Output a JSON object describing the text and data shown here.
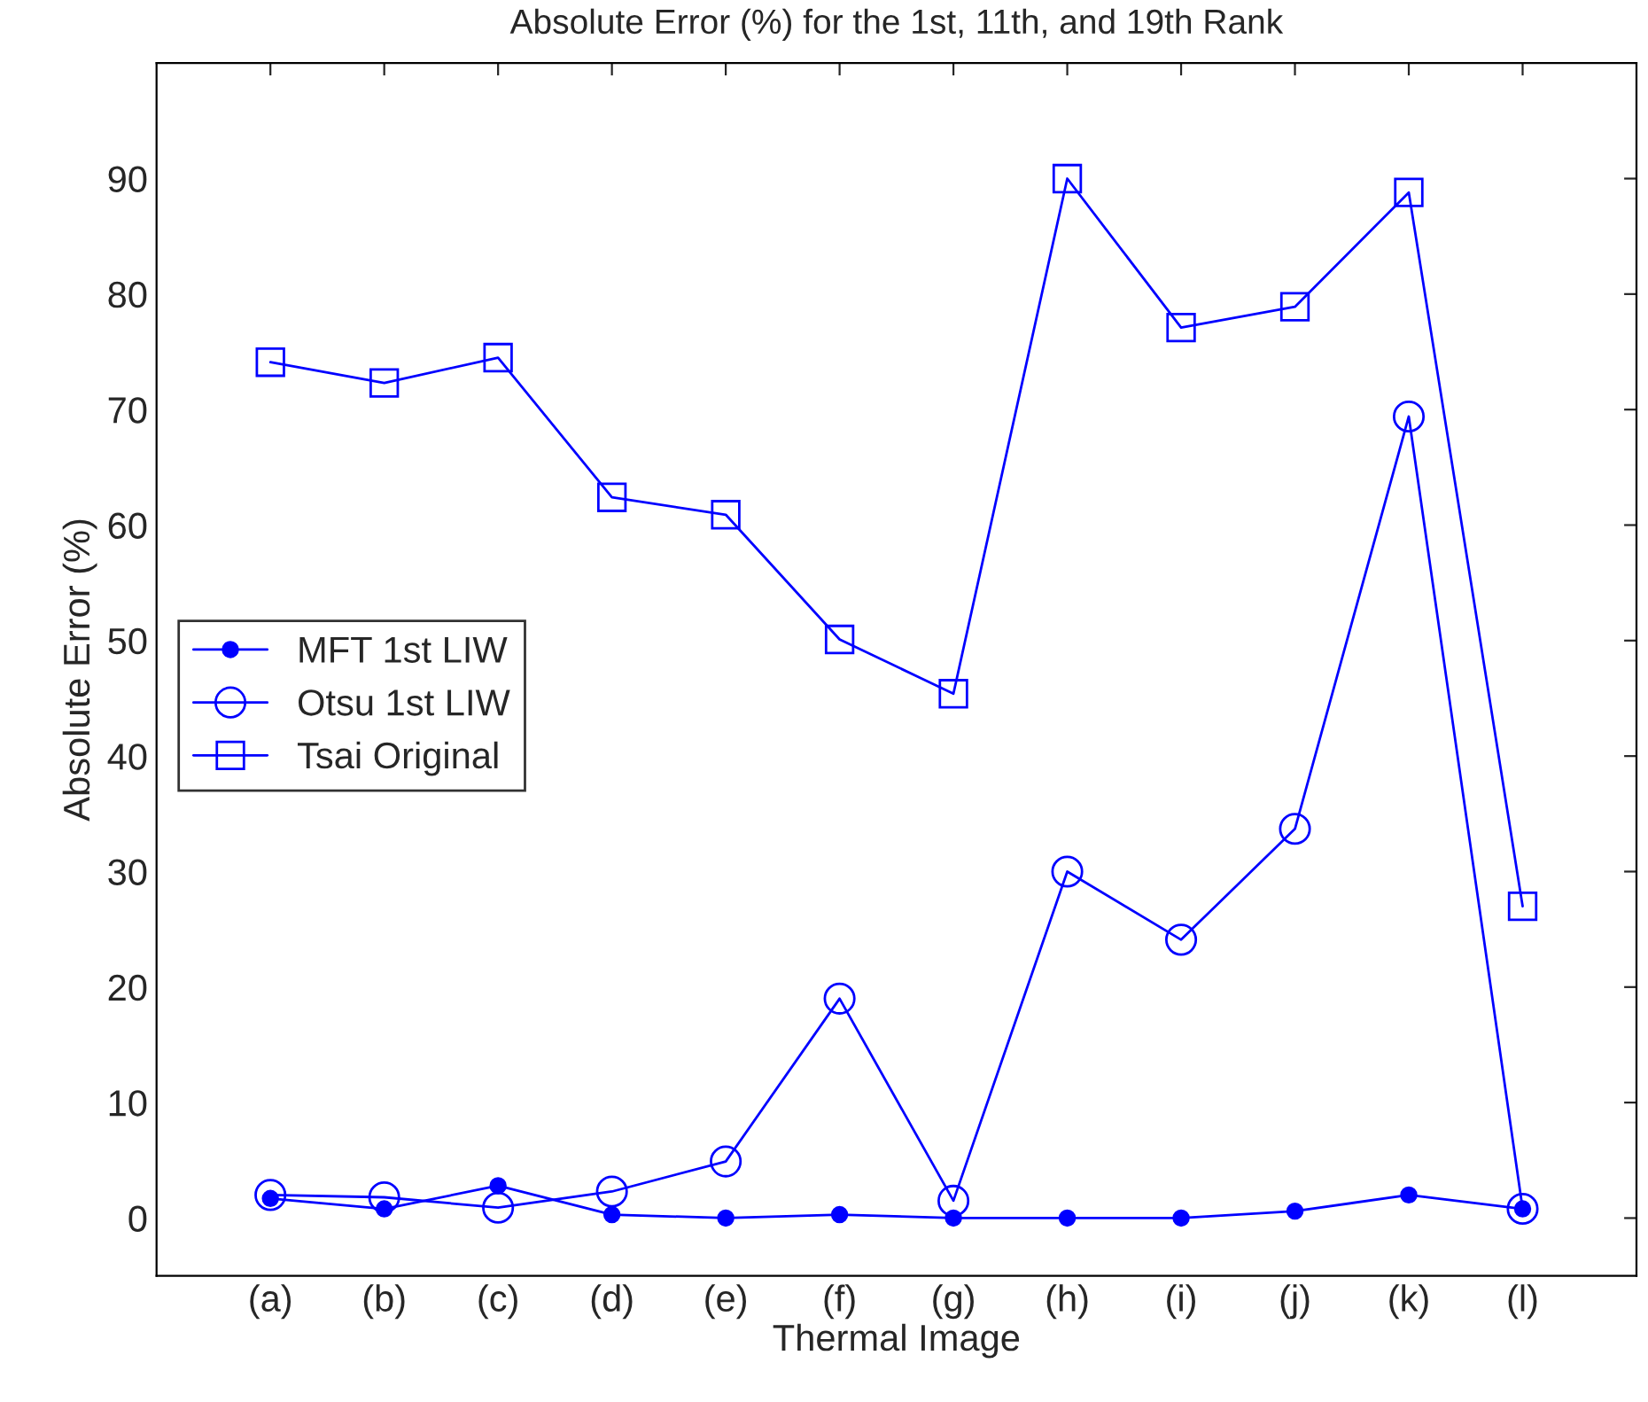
{
  "chart_data": {
    "type": "line",
    "title": "Absolute Error (%) for the 1st, 11th, and 19th Rank",
    "xlabel": "Thermal Image",
    "ylabel": "Absolute Error (%)",
    "categories": [
      "(a)",
      "(b)",
      "(c)",
      "(d)",
      "(e)",
      "(f)",
      "(g)",
      "(h)",
      "(i)",
      "(j)",
      "(k)",
      "(l)"
    ],
    "series": [
      {
        "name": "MFT 1st LIW",
        "color": "#0000ff",
        "marker": "circle_filled",
        "values": [
          1.7,
          0.8,
          2.8,
          0.3,
          0,
          0.3,
          0,
          0,
          0,
          0.6,
          2.0,
          0.8
        ]
      },
      {
        "name": "Otsu 1st LIW",
        "color": "#0000ff",
        "marker": "circle",
        "values": [
          2.0,
          1.8,
          0.9,
          2.3,
          4.9,
          19,
          1.5,
          30,
          24.1,
          33.7,
          69.4,
          0.8
        ]
      },
      {
        "name": "Tsai Original",
        "color": "#0000ff",
        "marker": "square",
        "values": [
          74.1,
          72.3,
          74.5,
          62.4,
          60.9,
          50.1,
          45.4,
          90,
          77.1,
          78.9,
          88.8,
          27
        ]
      }
    ],
    "ylim": [
      -5,
      100
    ],
    "yticks": [
      0,
      10,
      20,
      30,
      40,
      50,
      60,
      70,
      80,
      90
    ],
    "grid": false,
    "legend": "left",
    "line_style": "solid"
  }
}
